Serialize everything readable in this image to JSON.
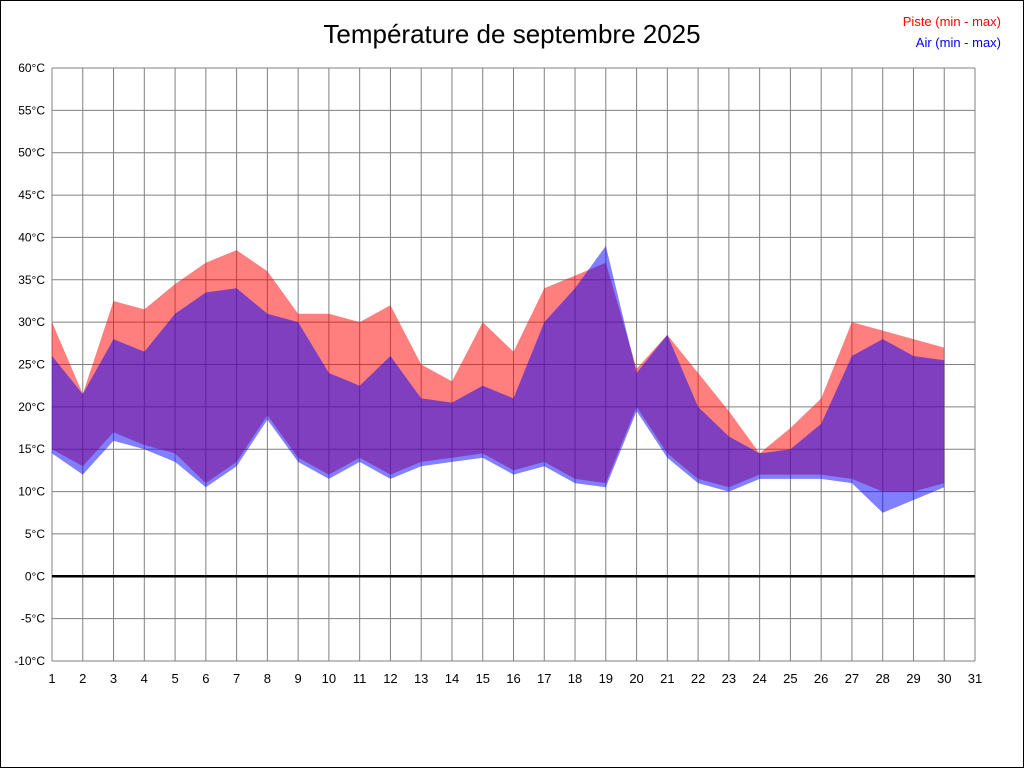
{
  "title": "Température de septembre 2025",
  "legend": [
    {
      "label": "Piste (min - max)",
      "color": "#ff0000"
    },
    {
      "label": "Air (min - max)",
      "color": "#0000ff"
    }
  ],
  "chart_data": {
    "type": "area",
    "subtype": "min-max-bands",
    "x_ticks": [
      1,
      2,
      3,
      4,
      5,
      6,
      7,
      8,
      9,
      10,
      11,
      12,
      13,
      14,
      15,
      16,
      17,
      18,
      19,
      20,
      21,
      22,
      23,
      24,
      25,
      26,
      27,
      28,
      29,
      30,
      31
    ],
    "y_ticks": [
      "60°C",
      "55°C",
      "50°C",
      "45°C",
      "40°C",
      "35°C",
      "30°C",
      "25°C",
      "20°C",
      "15°C",
      "10°C",
      "5°C",
      "0°C",
      "-5°C",
      "-10°C"
    ],
    "ylim": [
      -10,
      60
    ],
    "xlim": [
      1,
      31
    ],
    "grid": true,
    "grid_color": "#808080",
    "zero_line": true,
    "zero_line_color": "#000000",
    "days": [
      1,
      2,
      3,
      4,
      5,
      6,
      7,
      8,
      9,
      10,
      11,
      12,
      13,
      14,
      15,
      16,
      17,
      18,
      19,
      20,
      21,
      22,
      23,
      24,
      25,
      26,
      27,
      28,
      29,
      30
    ],
    "series": [
      {
        "name": "Piste",
        "fill": "rgba(255,0,0,0.5)",
        "color": "#ff0000",
        "max": [
          30,
          21.5,
          32.5,
          31.5,
          34.5,
          37,
          38.5,
          36,
          31,
          31,
          30,
          32,
          25,
          23,
          30,
          26.5,
          34,
          35.5,
          37,
          24.5,
          28.5,
          24,
          19.5,
          14.5,
          17.5,
          21,
          30,
          29,
          28,
          27
        ],
        "min": [
          15,
          13,
          17,
          15.5,
          14.5,
          11,
          13.5,
          19,
          14,
          12,
          14,
          12,
          13.5,
          14,
          14.5,
          12.5,
          13.5,
          11.5,
          11,
          20,
          14.5,
          11.5,
          10.5,
          12,
          12,
          12,
          11.5,
          10,
          10,
          11
        ]
      },
      {
        "name": "Air",
        "fill": "rgba(0,0,255,0.5)",
        "color": "#0000ff",
        "max": [
          26,
          21.5,
          28,
          26.5,
          31,
          33.5,
          34,
          31,
          30,
          24,
          22.5,
          26,
          21,
          20.5,
          22.5,
          21,
          30,
          34,
          39,
          24,
          28.5,
          20,
          16.5,
          14.5,
          15,
          18,
          26,
          28,
          26,
          25.5
        ],
        "min": [
          14.5,
          12,
          16,
          15,
          13.5,
          10.5,
          13,
          18.5,
          13.5,
          11.5,
          13.5,
          11.5,
          13,
          13.5,
          14,
          12,
          13,
          11,
          10.5,
          19.5,
          14,
          11,
          10,
          11.5,
          11.5,
          11.5,
          11,
          7.5,
          9,
          10.5
        ]
      }
    ]
  }
}
